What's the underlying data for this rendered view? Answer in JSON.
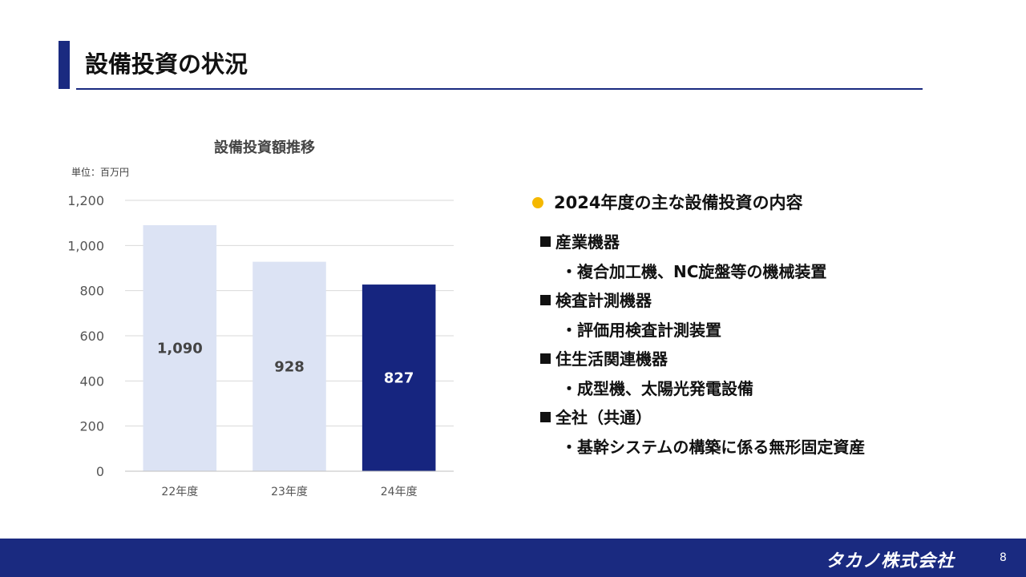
{
  "slide": {
    "title": "設備投資の状況",
    "page_number": "8"
  },
  "footer": {
    "logo_text": "タカノ株式会社"
  },
  "colors": {
    "accent": "#1a2a80",
    "bar_light": "#dce3f4",
    "bar_highlight": "#16257f",
    "bullet": "#f5b800"
  },
  "chart_data": {
    "type": "bar",
    "title": "設備投資額推移",
    "unit_label": "単位：百万円",
    "categories": [
      "22年度",
      "23年度",
      "24年度"
    ],
    "values": [
      1090,
      928,
      827
    ],
    "value_labels": [
      "1,090",
      "928",
      "827"
    ],
    "highlight_index": 2,
    "ylim": [
      0,
      1200
    ],
    "yticks": [
      0,
      200,
      400,
      600,
      800,
      1000,
      1200
    ],
    "ytick_labels": [
      "0",
      "200",
      "400",
      "600",
      "800",
      "1,000",
      "1,200"
    ],
    "grid": true,
    "xlabel": "",
    "ylabel": ""
  },
  "details": {
    "heading": "2024年度の主な設備投資の内容",
    "groups": [
      {
        "category": "産業機器",
        "item": "・複合加工機、NC旋盤等の機械装置"
      },
      {
        "category": "検査計測機器",
        "item": "・評価用検査計測装置"
      },
      {
        "category": "住生活関連機器",
        "item": "・成型機、太陽光発電設備"
      },
      {
        "category": "全社（共通）",
        "item": "・基幹システムの構築に係る無形固定資産"
      }
    ]
  }
}
